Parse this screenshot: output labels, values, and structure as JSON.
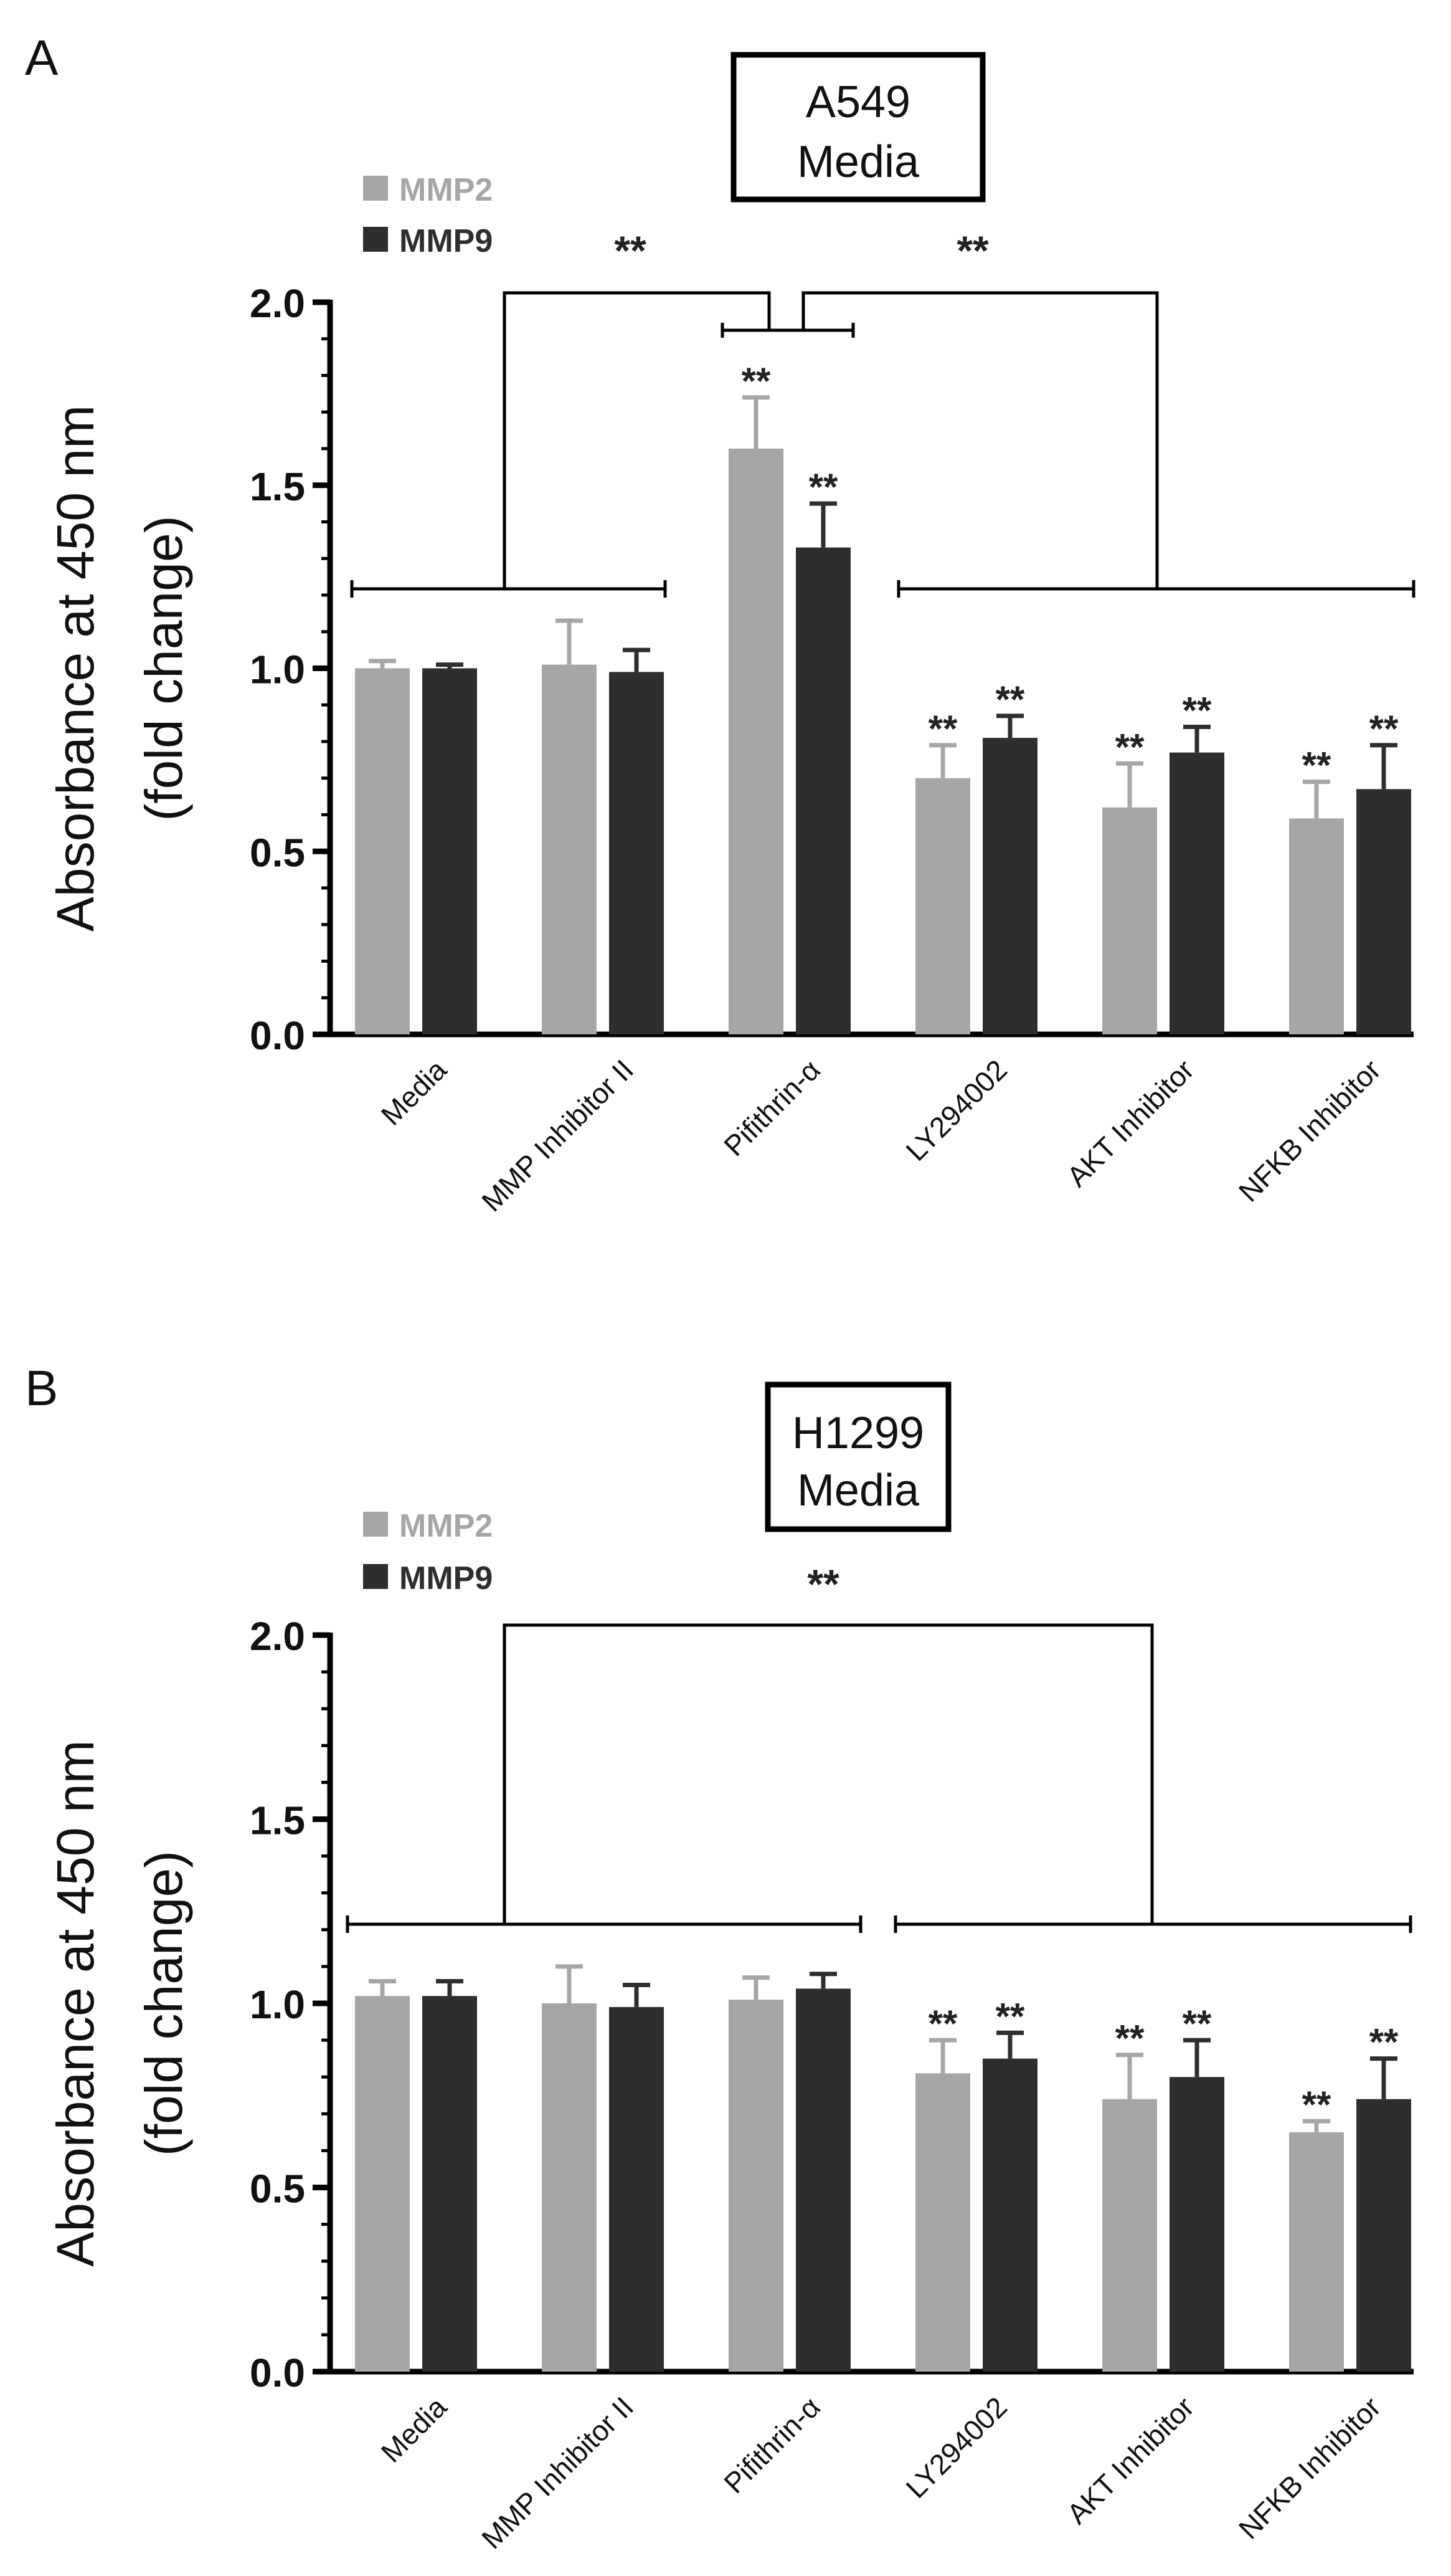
{
  "chart_data": [
    {
      "panel_label": "A",
      "type": "bar",
      "title_lines": [
        "A549",
        "Media"
      ],
      "ylabel_lines": [
        "Absorbance at 450 nm",
        "(fold change)"
      ],
      "xlabel": "",
      "ylim": [
        0,
        2.0
      ],
      "ytick_labels": [
        "0.0",
        "0.5",
        "1.0",
        "1.5",
        "2.0"
      ],
      "categories": [
        "Media",
        "MMP Inhibitor II",
        "Pifithrin-α",
        "LY294002",
        "AKT Inhibitor",
        "NFKB Inhibitor"
      ],
      "series": [
        {
          "name": "MMP2",
          "color": "#a6a6a8",
          "values": [
            1.0,
            1.01,
            1.6,
            0.7,
            0.62,
            0.59
          ],
          "errors": [
            0.02,
            0.12,
            0.14,
            0.09,
            0.12,
            0.1
          ],
          "stars": [
            "",
            "",
            "**",
            "**",
            "**",
            "**"
          ]
        },
        {
          "name": "MMP9",
          "color": "#2e2e2e",
          "values": [
            1.0,
            0.99,
            1.33,
            0.81,
            0.77,
            0.67
          ],
          "errors": [
            0.01,
            0.06,
            0.12,
            0.06,
            0.07,
            0.12
          ],
          "stars": [
            "",
            "",
            "**",
            "**",
            "**",
            "**"
          ]
        }
      ],
      "comparisons": [
        {
          "from": 0,
          "to": 1,
          "sig": "**"
        },
        {
          "from": 3,
          "to": 5,
          "sig": "**"
        }
      ]
    },
    {
      "panel_label": "B",
      "type": "bar",
      "title_lines": [
        "H1299",
        "Media"
      ],
      "ylabel_lines": [
        "Absorbance at 450 nm",
        "(fold change)"
      ],
      "xlabel": "",
      "ylim": [
        0,
        2.0
      ],
      "ytick_labels": [
        "0.0",
        "0.5",
        "1.0",
        "1.5",
        "2.0"
      ],
      "categories": [
        "Media",
        "MMP Inhibitor II",
        "Pifithrin-α",
        "LY294002",
        "AKT Inhibitor",
        "NFKB Inhibitor"
      ],
      "series": [
        {
          "name": "MMP2",
          "color": "#a6a6a8",
          "values": [
            1.02,
            1.0,
            1.01,
            0.81,
            0.74,
            0.65
          ],
          "errors": [
            0.04,
            0.1,
            0.06,
            0.09,
            0.12,
            0.03
          ],
          "stars": [
            "",
            "",
            "",
            "**",
            "**",
            "**"
          ]
        },
        {
          "name": "MMP9",
          "color": "#2e2e2e",
          "values": [
            1.02,
            0.99,
            1.04,
            0.85,
            0.8,
            0.74
          ],
          "errors": [
            0.04,
            0.06,
            0.04,
            0.07,
            0.1,
            0.11
          ],
          "stars": [
            "",
            "",
            "",
            "**",
            "**",
            "**"
          ]
        }
      ],
      "comparisons": [
        {
          "from": 0,
          "to": 2,
          "sig": ""
        },
        {
          "from": 3,
          "to": 5,
          "sig": ""
        }
      ],
      "group_sig": "**"
    }
  ]
}
